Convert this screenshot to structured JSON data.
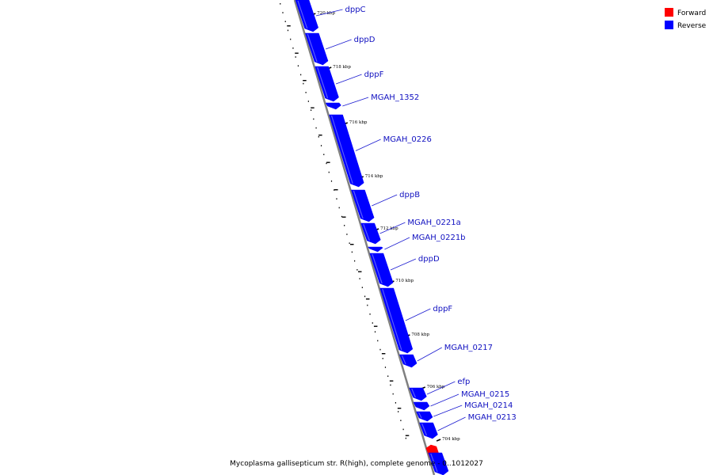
{
  "legend": [
    {
      "label": "Forward",
      "color": "#ff0000"
    },
    {
      "label": "Reverse",
      "color": "#0000ff"
    }
  ],
  "caption": "Mycoplasma gallisepticum str. R(high), complete genome - 0..1012027",
  "ticks": [
    "720 kbp",
    "718 kbp",
    "716 kbp",
    "714 kbp",
    "712 kbp",
    "710 kbp",
    "708 kbp",
    "706 kbp",
    "704 kbp"
  ],
  "genes": [
    {
      "name": "dppC",
      "strand": "reverse"
    },
    {
      "name": "dppD",
      "strand": "reverse"
    },
    {
      "name": "dppF",
      "strand": "reverse"
    },
    {
      "name": "MGAH_1352",
      "strand": "reverse"
    },
    {
      "name": "MGAH_0226",
      "strand": "reverse"
    },
    {
      "name": "dppB",
      "strand": "reverse"
    },
    {
      "name": "MGAH_0221a",
      "strand": "reverse"
    },
    {
      "name": "MGAH_0221b",
      "strand": "reverse"
    },
    {
      "name": "dppD",
      "strand": "reverse"
    },
    {
      "name": "dppF",
      "strand": "reverse"
    },
    {
      "name": "MGAH_0217",
      "strand": "reverse"
    },
    {
      "name": "efp",
      "strand": "reverse"
    },
    {
      "name": "MGAH_0215",
      "strand": "reverse"
    },
    {
      "name": "MGAH_0214",
      "strand": "reverse"
    },
    {
      "name": "MGAH_0213",
      "strand": "reverse"
    },
    {
      "name": "",
      "strand": "forward"
    },
    {
      "name": "",
      "strand": "reverse"
    }
  ]
}
